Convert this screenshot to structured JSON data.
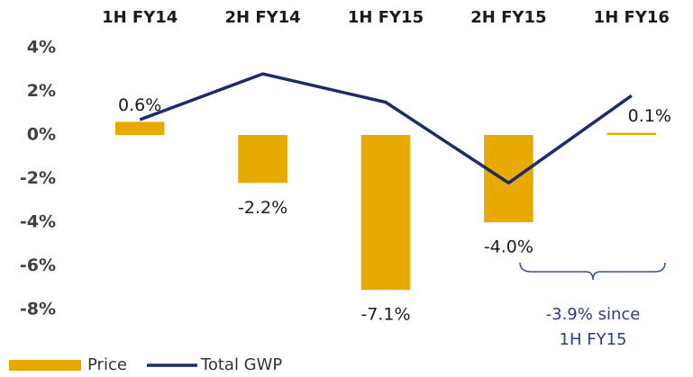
{
  "chart_data": {
    "type": "bar",
    "categories": [
      "1H FY14",
      "2H FY14",
      "1H FY15",
      "2H FY15",
      "1H FY16"
    ],
    "series": [
      {
        "name": "Price",
        "type": "bar",
        "color": "#e8a900",
        "values": [
          0.6,
          -2.2,
          -7.1,
          -4.0,
          0.1
        ],
        "value_labels": [
          "0.6%",
          "-2.2%",
          "-7.1%",
          "-4.0%",
          "0.1%"
        ]
      },
      {
        "name": "Total GWP",
        "type": "line",
        "color": "#1f2a6b",
        "values": [
          0.7,
          2.8,
          1.5,
          -2.2,
          1.8
        ]
      }
    ],
    "ylim": [
      -8,
      4
    ],
    "yticks": [
      {
        "value": 4,
        "label": "4%"
      },
      {
        "value": 2,
        "label": "2%"
      },
      {
        "value": 0,
        "label": "0%"
      },
      {
        "value": -2,
        "label": "-2%"
      },
      {
        "value": -4,
        "label": "-4%"
      },
      {
        "value": -6,
        "label": "-6%"
      },
      {
        "value": -8,
        "label": "-8%"
      }
    ],
    "grid": false,
    "legend": "bottom-left",
    "annotation": [
      "-3.9% since",
      "1H FY15"
    ]
  }
}
